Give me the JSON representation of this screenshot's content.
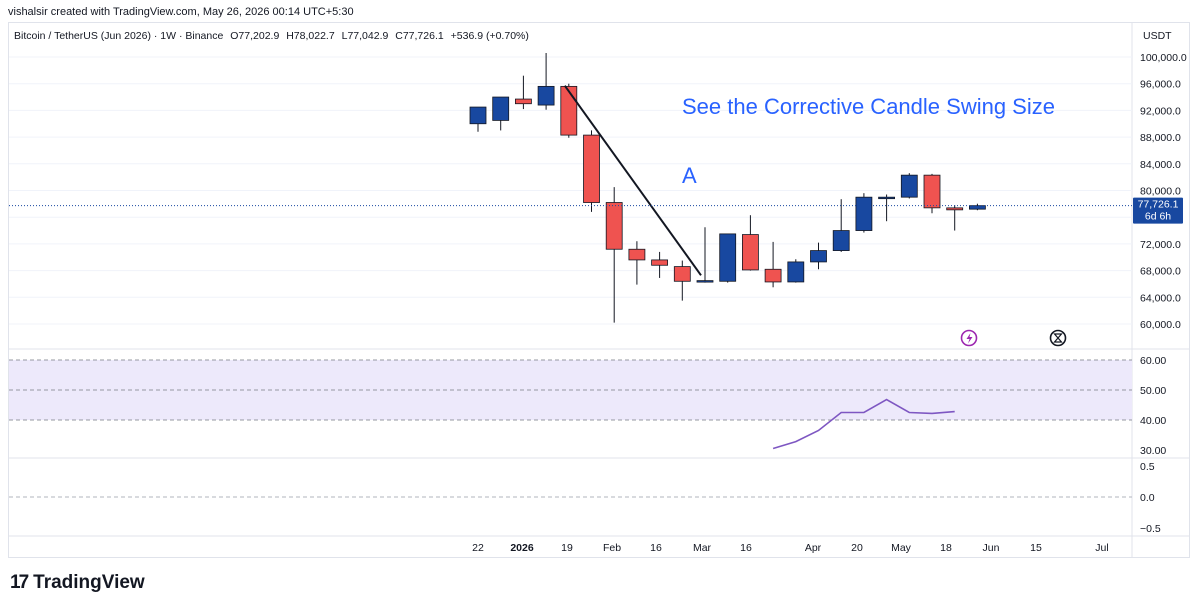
{
  "header": {
    "credit": "vishalsir created with TradingView.com, May 26, 2026 00:14 UTC+5:30"
  },
  "legend": {
    "symbol": "Bitcoin / TetherUS (Jun 2026) · 1W · Binance",
    "open": "O77,202.9",
    "high": "H78,022.7",
    "low": "L77,042.9",
    "close": "C77,726.1",
    "change": "+536.9 (+0.70%)"
  },
  "annotations": {
    "headline": "See the Corrective Candle Swing Size",
    "label_a": "A"
  },
  "price_axis": {
    "currency": "USDT",
    "ticks": [
      "100,000.0",
      "96,000.0",
      "92,000.0",
      "88,000.0",
      "84,000.0",
      "80,000.0",
      "76,000.0",
      "72,000.0",
      "68,000.0",
      "64,000.0",
      "60,000.0"
    ],
    "last_price": "77,726.1",
    "countdown": "6d 6h"
  },
  "indicator_axis": {
    "ticks": [
      "60.00",
      "50.00",
      "40.00",
      "30.00"
    ]
  },
  "oscillator_axis": {
    "ticks": [
      "0.5",
      "0.0",
      "−0.5"
    ]
  },
  "time_axis": {
    "labels": [
      "22",
      "2026",
      "19",
      "Feb",
      "16",
      "Mar",
      "16",
      "Apr",
      "20",
      "May",
      "18",
      "Jun",
      "15",
      "Jul"
    ]
  },
  "colors": {
    "up": "#1848a0",
    "down": "#ef5350",
    "line": "#7e57c2",
    "band": "#ede9fb",
    "headline": "#2962ff"
  },
  "icons": [
    "lightning-icon",
    "hourglass-icon"
  ],
  "footer": {
    "brand": "TradingView",
    "brand_mark": "17"
  },
  "chart_data": {
    "type": "candlestick",
    "timeframe": "1W",
    "y_range": [
      58000,
      102000
    ],
    "candles": [
      {
        "o": 90000,
        "h": 92500,
        "l": 88800,
        "c": 92500
      },
      {
        "o": 90500,
        "h": 93800,
        "l": 89000,
        "c": 94000
      },
      {
        "o": 93700,
        "h": 97200,
        "l": 92200,
        "c": 93000
      },
      {
        "o": 92800,
        "h": 100600,
        "l": 92100,
        "c": 95600
      },
      {
        "o": 95600,
        "h": 96000,
        "l": 87900,
        "c": 88300
      },
      {
        "o": 88300,
        "h": 89000,
        "l": 76800,
        "c": 78200
      },
      {
        "o": 78200,
        "h": 80500,
        "l": 60200,
        "c": 71200
      },
      {
        "o": 71200,
        "h": 72400,
        "l": 65900,
        "c": 69600
      },
      {
        "o": 69600,
        "h": 70800,
        "l": 66900,
        "c": 68800
      },
      {
        "o": 68600,
        "h": 69500,
        "l": 63500,
        "c": 66400
      },
      {
        "o": 66400,
        "h": 74500,
        "l": 66200,
        "c": 66500
      },
      {
        "o": 66400,
        "h": 73500,
        "l": 66200,
        "c": 73500
      },
      {
        "o": 73400,
        "h": 76300,
        "l": 68000,
        "c": 68100
      },
      {
        "o": 68200,
        "h": 72300,
        "l": 65500,
        "c": 66300
      },
      {
        "o": 66300,
        "h": 69700,
        "l": 66200,
        "c": 69300
      },
      {
        "o": 69300,
        "h": 72200,
        "l": 68200,
        "c": 71000
      },
      {
        "o": 71000,
        "h": 78700,
        "l": 70800,
        "c": 74000
      },
      {
        "o": 74000,
        "h": 79600,
        "l": 73700,
        "c": 79000
      },
      {
        "o": 79000,
        "h": 79400,
        "l": 75400,
        "c": 79000
      },
      {
        "o": 79000,
        "h": 82600,
        "l": 78800,
        "c": 82300
      },
      {
        "o": 82300,
        "h": 82500,
        "l": 76600,
        "c": 77400
      },
      {
        "o": 77400,
        "h": 77800,
        "l": 74000,
        "c": 77100
      },
      {
        "o": 77203,
        "h": 78023,
        "l": 77043,
        "c": 77726
      }
    ],
    "trendline": {
      "from_index": 4,
      "from_value": 95700,
      "to_index": 10,
      "to_value": 67300
    },
    "indicator": {
      "levels": [
        60,
        50,
        40
      ],
      "y_range": [
        27,
        65
      ],
      "start_index": 13,
      "values": [
        30.5,
        32.8,
        36.5,
        42.5,
        42.5,
        46.8,
        42.5,
        42.2,
        42.8
      ]
    }
  }
}
